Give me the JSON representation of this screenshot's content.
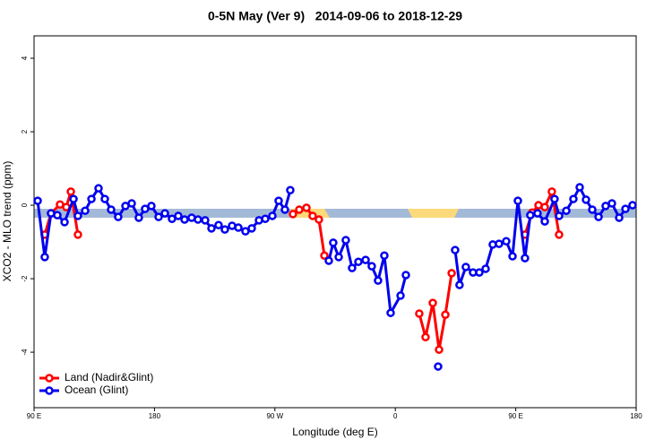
{
  "chart_data": {
    "type": "line",
    "title": "0-5N May (Ver 9)   2014-09-06 to 2018-12-29",
    "x_label": "Longitude (deg E)",
    "y_label": "XCO2 - MLO trend (ppm)",
    "xlim": [
      90,
      540
    ],
    "ylim": [
      -5.51,
      4.61
    ],
    "xticks": [
      {
        "value": 90,
        "label": "90 E"
      },
      180,
      {
        "value": 270,
        "label": "90 W"
      },
      {
        "value": 360,
        "label": "0"
      },
      {
        "value": 450,
        "label": "90 E"
      },
      {
        "value": 540,
        "label": "180"
      }
    ],
    "yticks": [
      -4,
      -2,
      0,
      2,
      4
    ],
    "legend": "bottom-left",
    "series": [
      {
        "name": "Land (Nadir&Glint)",
        "color": "#ff0000",
        "x": [
          98,
          102.7,
          109.4,
          114.1,
          117.5,
          122.8,
          200,
          283.5,
          288.2,
          293.6,
          298.2,
          302.9,
          307,
          340,
          377.9,
          382.6,
          388,
          392.7,
          397.4,
          402.1,
          440,
          456.9,
          462.3,
          467,
          471.7,
          477,
          482.4
        ],
        "values": [
          -0.8,
          -0.22,
          0.02,
          -0.05,
          0.37,
          -0.8,
          null,
          -0.24,
          -0.12,
          -0.07,
          -0.29,
          -0.39,
          -1.37,
          null,
          -2.95,
          -3.59,
          -2.66,
          -3.93,
          -2.98,
          -1.85,
          null,
          -0.8,
          -0.2,
          0,
          -0.05,
          0.37,
          -0.8
        ]
      },
      {
        "name": "Ocean (Glint)",
        "color": "#0000ee",
        "x": [
          92.7,
          98,
          102.7,
          107.4,
          112.8,
          119.5,
          122.8,
          128.2,
          132.9,
          138.2,
          142.9,
          147.6,
          152.9,
          158.3,
          163,
          168.3,
          173,
          177.7,
          183.1,
          187.8,
          193.1,
          197.8,
          202.5,
          207.8,
          212.5,
          217.9,
          222.6,
          227.9,
          232.6,
          238,
          242.7,
          248,
          252.7,
          258.1,
          262.8,
          268.1,
          272.8,
          277.5,
          281.5,
          300,
          310.3,
          313.6,
          317.7,
          323,
          327.7,
          332.4,
          337.8,
          342.4,
          347.1,
          351.8,
          356.5,
          363.9,
          367.9,
          380,
          392,
          400,
          404.7,
          408,
          412.7,
          418.1,
          422.8,
          427.5,
          432.8,
          437.5,
          442.9,
          447.6,
          451.6,
          456.9,
          460.9,
          466.3,
          471.7,
          479,
          482.4,
          487.8,
          493.1,
          497.8,
          502.5,
          507.2,
          511.9,
          517.2,
          521.9,
          527.3,
          532,
          537.3
        ],
        "values": [
          0.12,
          -1.41,
          -0.22,
          -0.27,
          -0.46,
          0.17,
          -0.29,
          -0.15,
          0.17,
          0.46,
          0.17,
          -0.12,
          -0.32,
          -0.02,
          0.05,
          -0.34,
          -0.1,
          -0.02,
          -0.32,
          -0.22,
          -0.37,
          -0.29,
          -0.39,
          -0.34,
          -0.39,
          -0.41,
          -0.63,
          -0.54,
          -0.66,
          -0.56,
          -0.61,
          -0.71,
          -0.63,
          -0.41,
          -0.37,
          -0.29,
          0.12,
          -0.12,
          0.41,
          null,
          -1.51,
          -1.02,
          -1.41,
          -0.95,
          -1.71,
          -1.54,
          -1.49,
          -1.66,
          -2.05,
          -1.37,
          -2.93,
          -2.46,
          -1.9,
          null,
          -4.39,
          null,
          -1.22,
          -2.17,
          -1.68,
          -1.83,
          -1.83,
          -1.73,
          -1.07,
          -1.05,
          -0.98,
          -1.39,
          0.12,
          -1.44,
          -0.27,
          -0.22,
          -0.44,
          0.17,
          -0.29,
          -0.15,
          0.17,
          0.49,
          0.15,
          -0.12,
          -0.32,
          -0.02,
          0.05,
          -0.34,
          -0.1,
          0
        ]
      }
    ]
  }
}
